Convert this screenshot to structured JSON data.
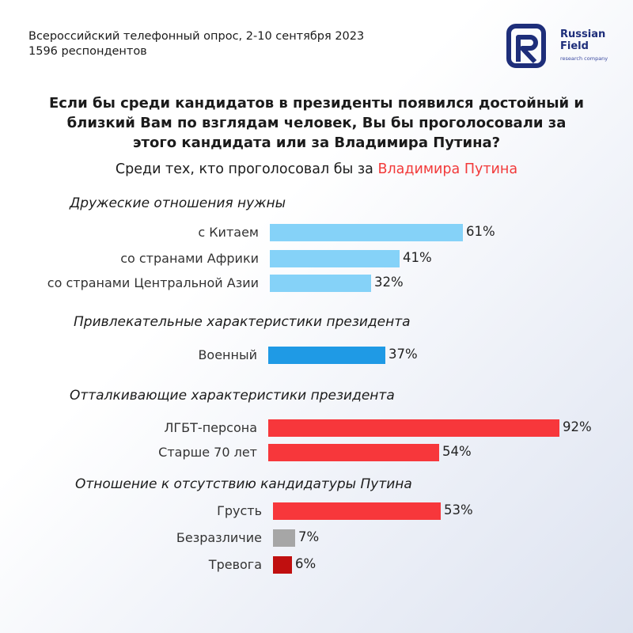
{
  "header": {
    "survey_line1": "Всероссийский телефонный опрос, 2-10 сентября 2023",
    "survey_line2": "1596 респондентов"
  },
  "logo": {
    "line1": "Russian",
    "line2": "Field",
    "tagline": "research company"
  },
  "question": {
    "line1": "Если бы среди кандидатов в президенты появился достойный и",
    "line2": "близкий Вам по взглядам человек, Вы бы проголосовали за",
    "line3": "этого кандидата или за Владимира Путина?"
  },
  "subtitle": {
    "prefix": "Среди тех, кто проголосовал бы за ",
    "highlight": "Владимира Путина"
  },
  "colors": {
    "light_blue": "#85d2f8",
    "blue": "#1f9ae5",
    "red": "#f7373b",
    "gray": "#a6a6a6",
    "dark_red": "#c00f0f",
    "highlight": "#f23a3a",
    "logo": "#1e2e7a"
  },
  "chart_data": {
    "type": "bar",
    "orientation": "horizontal",
    "unit": "%",
    "groups": [
      {
        "title": "Дружеские отношения нужны",
        "items": [
          {
            "label": "с Китаем",
            "value": 61,
            "display": "61%",
            "color": "#85d2f8"
          },
          {
            "label": "со странами Африки",
            "value": 41,
            "display": "41%",
            "color": "#85d2f8"
          },
          {
            "label": "со странами Центральной Азии",
            "value": 32,
            "display": "32%",
            "color": "#85d2f8"
          }
        ]
      },
      {
        "title": "Привлекательные характеристики президента",
        "items": [
          {
            "label": "Военный",
            "value": 37,
            "display": "37%",
            "color": "#1f9ae5"
          }
        ]
      },
      {
        "title": "Отталкивающие характеристики президента",
        "items": [
          {
            "label": "ЛГБТ-персона",
            "value": 92,
            "display": "92%",
            "color": "#f7373b"
          },
          {
            "label": "Старше 70 лет",
            "value": 54,
            "display": "54%",
            "color": "#f7373b"
          }
        ]
      },
      {
        "title": "Отношение к отсутствию кандидатуры Путина",
        "items": [
          {
            "label": "Грусть",
            "value": 53,
            "display": "53%",
            "color": "#f7373b"
          },
          {
            "label": "Безразличие",
            "value": 7,
            "display": "7%",
            "color": "#a6a6a6"
          },
          {
            "label": "Тревога",
            "value": 6,
            "display": "6%",
            "color": "#c00f0f"
          }
        ]
      }
    ]
  }
}
